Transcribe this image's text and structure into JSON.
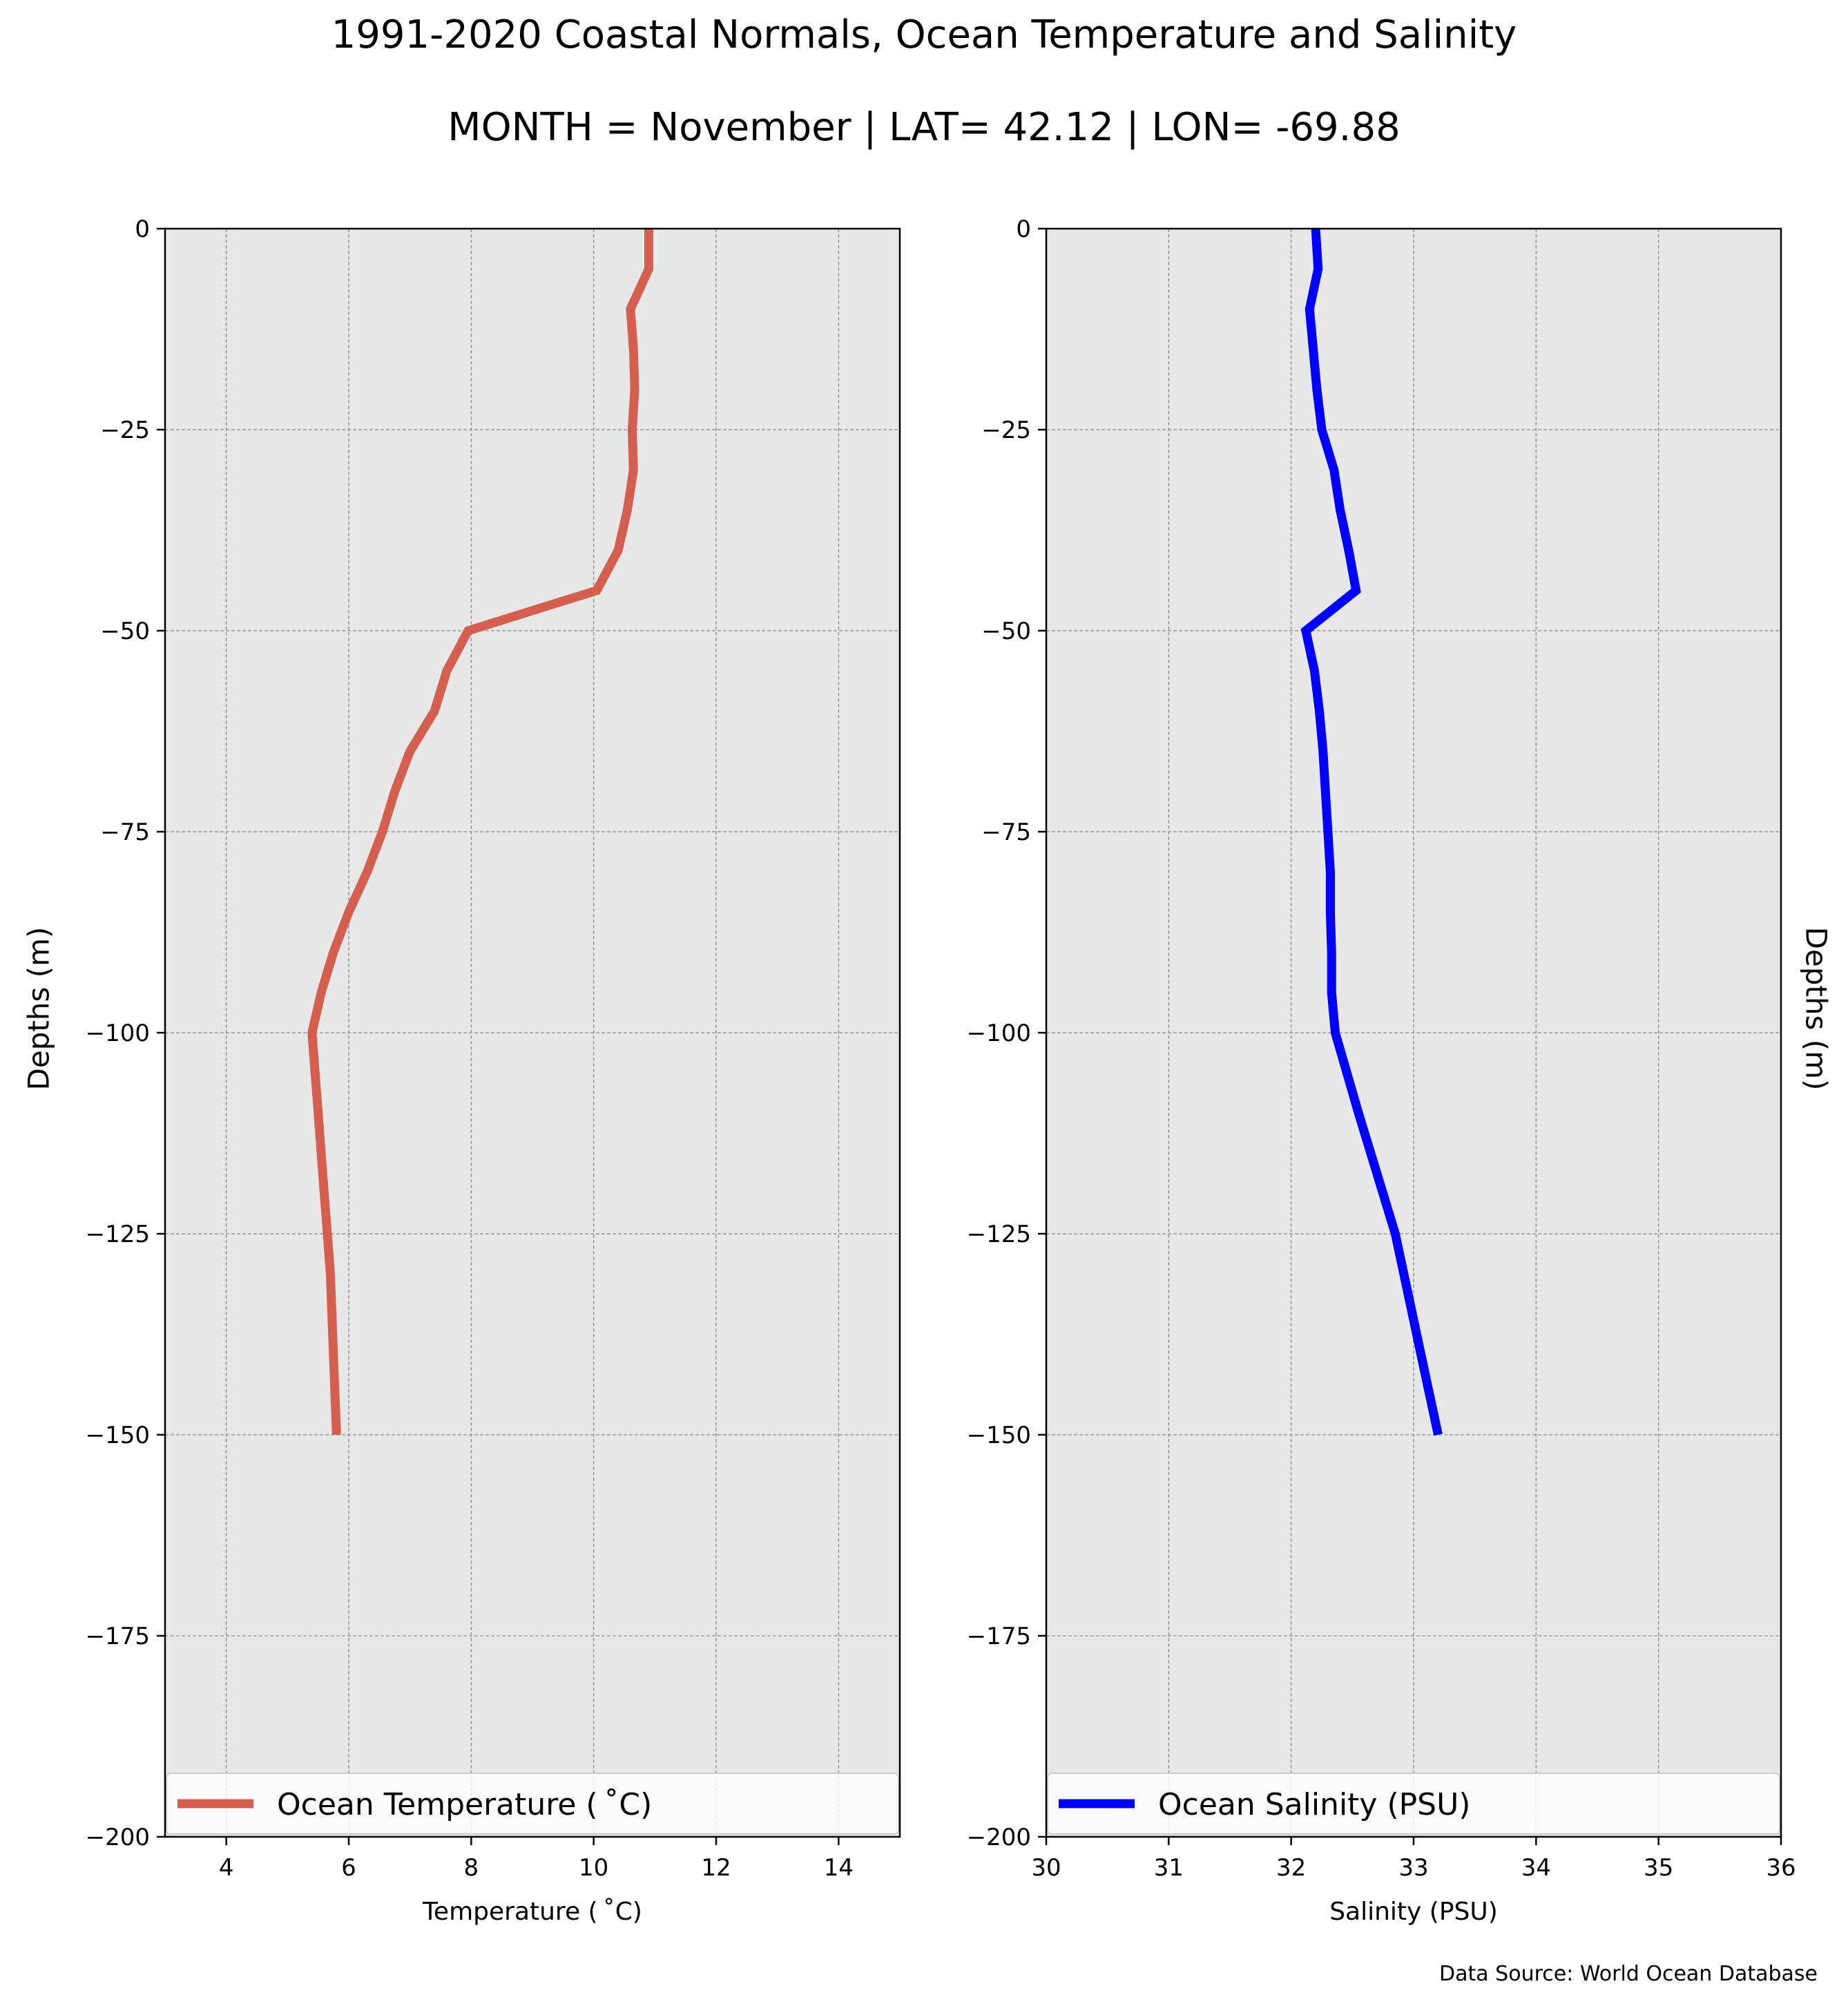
{
  "figure": {
    "title_line1": "1991-2020 Coastal Normals, Ocean Temperature and Salinity",
    "title_line2": "MONTH = November | LAT= 42.12 | LON= -69.88",
    "shared_ylabel": "Depths (m)",
    "source_note": "Data Source: World Ocean Database"
  },
  "chart_data": [
    {
      "type": "line",
      "id": "temperature",
      "xlabel": "Temperature ( ˚C)",
      "ylabel": "Depths (m)",
      "xlim": [
        3,
        15
      ],
      "ylim": [
        -200,
        0
      ],
      "xticks": [
        4,
        6,
        8,
        10,
        12,
        14
      ],
      "yticks": [
        0,
        -25,
        -50,
        -75,
        -100,
        -125,
        -150,
        -175,
        -200
      ],
      "grid": true,
      "legend_position": "bottom",
      "colors": {
        "line": "#d45f4e",
        "background": "#e7e7e7",
        "grid": "#9a9a9a"
      },
      "series": [
        {
          "name": "Ocean Temperature ( ˚C)",
          "x": [
            10.9,
            10.9,
            10.6,
            10.65,
            10.67,
            10.63,
            10.65,
            10.55,
            10.4,
            10.05,
            7.95,
            7.6,
            7.4,
            7.0,
            6.75,
            6.55,
            6.3,
            6.0,
            5.75,
            5.55,
            5.4,
            5.5,
            5.6,
            5.65,
            5.7,
            5.75,
            5.8
          ],
          "y": [
            0,
            -5,
            -10,
            -15,
            -20,
            -25,
            -30,
            -35,
            -40,
            -45,
            -50,
            -55,
            -60,
            -65,
            -70,
            -75,
            -80,
            -85,
            -90,
            -95,
            -100,
            -110,
            -120,
            -125,
            -130,
            -140,
            -150
          ]
        }
      ]
    },
    {
      "type": "line",
      "id": "salinity",
      "xlabel": "Salinity (PSU)",
      "ylabel": "Depths (m)",
      "xlim": [
        30,
        36
      ],
      "ylim": [
        -200,
        0
      ],
      "xticks": [
        30,
        31,
        32,
        33,
        34,
        35,
        36
      ],
      "yticks": [
        0,
        -25,
        -50,
        -75,
        -100,
        -125,
        -150,
        -175,
        -200
      ],
      "grid": true,
      "legend_position": "bottom",
      "colors": {
        "line": "#0000ff",
        "background": "#e7e7e7",
        "grid": "#9a9a9a"
      },
      "series": [
        {
          "name": "Ocean Salinity (PSU)",
          "x": [
            32.2,
            32.22,
            32.15,
            32.18,
            32.21,
            32.25,
            32.35,
            32.4,
            32.47,
            32.53,
            32.12,
            32.19,
            32.23,
            32.26,
            32.28,
            32.3,
            32.32,
            32.32,
            32.33,
            32.33,
            32.36,
            32.55,
            32.75,
            32.85,
            32.92,
            33.06,
            33.2
          ],
          "y": [
            0,
            -5,
            -10,
            -15,
            -20,
            -25,
            -30,
            -35,
            -40,
            -45,
            -50,
            -55,
            -60,
            -65,
            -70,
            -75,
            -80,
            -85,
            -90,
            -95,
            -100,
            -110,
            -120,
            -125,
            -130,
            -140,
            -150
          ]
        }
      ]
    }
  ]
}
